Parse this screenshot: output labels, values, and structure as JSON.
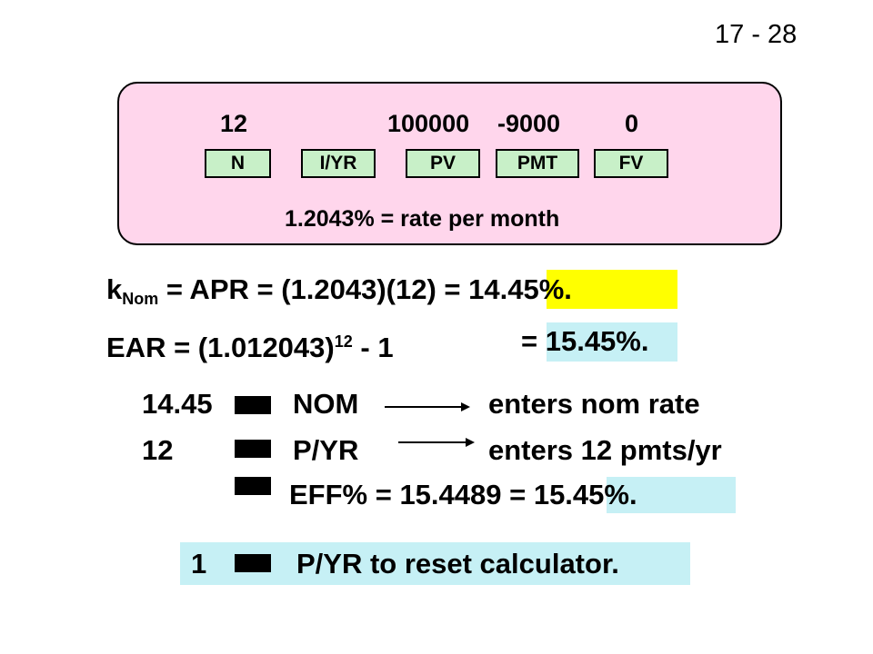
{
  "slide_number": "17 - 28",
  "calculator": {
    "inputs": [
      {
        "key": "N",
        "value": "12"
      },
      {
        "key": "I/YR",
        "value": ""
      },
      {
        "key": "PV",
        "value": "100000"
      },
      {
        "key": "PMT",
        "value": "-9000"
      },
      {
        "key": "FV",
        "value": "0"
      }
    ],
    "result_note": "1.2043% = rate per month"
  },
  "formulas": {
    "knom_k": "k",
    "knom_sub": "Nom",
    "knom_expr": " = APR = (1.2043)(12) = ",
    "knom_result": "14.45%.",
    "ear_expr": "EAR = (1.012043)",
    "ear_sup": "12",
    "ear_tail": " - 1",
    "ear_eq": "= ",
    "ear_result": "15.45%."
  },
  "keystrokes": {
    "row1_value": "14.45",
    "row1_key": "NOM",
    "row1_desc": "enters nom rate",
    "row2_value": "12",
    "row2_key": "P/YR",
    "row2_desc": "enters 12 pmts/yr",
    "row3_expr": "EFF%  =  15.4489 = ",
    "row3_result": "15.45%."
  },
  "reset": {
    "value": "1",
    "text": "P/YR to reset calculator."
  },
  "colors": {
    "box_fill": "#ffd6ec",
    "key_fill": "#c8f0c8",
    "highlight_yellow": "#ffff00",
    "highlight_cyan": "#c6f0f5"
  }
}
